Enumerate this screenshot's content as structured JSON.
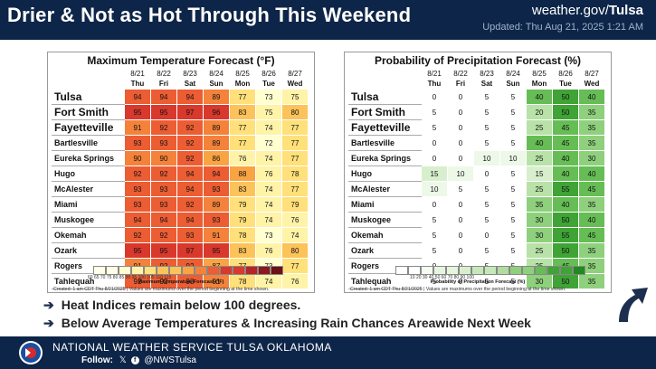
{
  "header": {
    "title": "Drier & Not as Hot Through This Weekend",
    "site_prefix": "weather.gov/",
    "site_office": "Tulsa",
    "updated": "Updated: Thu Aug 21, 2025 1:21 AM"
  },
  "temp_panel": {
    "title": "Maximum Temperature Forecast (°F)",
    "dates": [
      "8/21",
      "8/22",
      "8/23",
      "8/24",
      "8/25",
      "8/26",
      "8/27"
    ],
    "days": [
      "Thu",
      "Fri",
      "Sat",
      "Sun",
      "Mon",
      "Tue",
      "Wed"
    ],
    "rows": [
      {
        "city": "Tulsa",
        "size": "big",
        "values": [
          94,
          94,
          94,
          89,
          77,
          73,
          75
        ]
      },
      {
        "city": "Fort Smith",
        "size": "big",
        "values": [
          95,
          95,
          97,
          96,
          83,
          75,
          80
        ]
      },
      {
        "city": "Fayetteville",
        "size": "big",
        "values": [
          91,
          92,
          92,
          89,
          77,
          74,
          77
        ]
      },
      {
        "city": "Bartlesville",
        "size": "small",
        "values": [
          93,
          93,
          92,
          89,
          77,
          72,
          77
        ]
      },
      {
        "city": "Eureka Springs",
        "size": "small",
        "values": [
          90,
          90,
          92,
          86,
          76,
          74,
          77
        ]
      },
      {
        "city": "Hugo",
        "size": "small",
        "values": [
          92,
          92,
          94,
          94,
          88,
          76,
          78
        ]
      },
      {
        "city": "McAlester",
        "size": "small",
        "values": [
          93,
          93,
          94,
          93,
          83,
          74,
          77
        ]
      },
      {
        "city": "Miami",
        "size": "small",
        "values": [
          93,
          93,
          92,
          89,
          79,
          74,
          79
        ]
      },
      {
        "city": "Muskogee",
        "size": "small",
        "values": [
          94,
          94,
          94,
          93,
          79,
          74,
          76
        ]
      },
      {
        "city": "Okemah",
        "size": "small",
        "values": [
          92,
          92,
          93,
          91,
          78,
          73,
          74
        ]
      },
      {
        "city": "Ozark",
        "size": "small",
        "values": [
          95,
          95,
          97,
          95,
          83,
          76,
          80
        ]
      },
      {
        "city": "Rogers",
        "size": "small",
        "values": [
          91,
          92,
          92,
          87,
          77,
          73,
          77
        ]
      },
      {
        "city": "Tahlequah",
        "size": "small",
        "values": [
          92,
          92,
          93,
          91,
          78,
          74,
          76
        ]
      }
    ],
    "legend_ticks": "60   65   70   75   80   85   90   95  100  105  110  115",
    "legend_label": "Maximum Temperature Forecast (°F)",
    "created": "Created: 1 am CDT Thu 8/21/2025  |  Values are maximums over the period beginning at the time shown."
  },
  "precip_panel": {
    "title": "Probability of Precipitation Forecast (%)",
    "dates": [
      "8/21",
      "8/22",
      "8/23",
      "8/24",
      "8/25",
      "8/26",
      "8/27"
    ],
    "days": [
      "Thu",
      "Fri",
      "Sat",
      "Sun",
      "Mon",
      "Tue",
      "Wed"
    ],
    "rows": [
      {
        "city": "Tulsa",
        "size": "big",
        "values": [
          0,
          0,
          5,
          5,
          40,
          50,
          40
        ]
      },
      {
        "city": "Fort Smith",
        "size": "big",
        "values": [
          5,
          0,
          5,
          5,
          20,
          50,
          35
        ]
      },
      {
        "city": "Fayetteville",
        "size": "big",
        "values": [
          5,
          0,
          5,
          5,
          25,
          45,
          35
        ]
      },
      {
        "city": "Bartlesville",
        "size": "small",
        "values": [
          0,
          0,
          5,
          5,
          40,
          45,
          35
        ]
      },
      {
        "city": "Eureka Springs",
        "size": "small",
        "values": [
          0,
          0,
          10,
          10,
          25,
          40,
          30
        ]
      },
      {
        "city": "Hugo",
        "size": "small",
        "values": [
          15,
          10,
          0,
          5,
          15,
          40,
          40
        ]
      },
      {
        "city": "McAlester",
        "size": "small",
        "values": [
          10,
          5,
          5,
          5,
          25,
          55,
          45
        ]
      },
      {
        "city": "Miami",
        "size": "small",
        "values": [
          0,
          0,
          5,
          5,
          35,
          40,
          35
        ]
      },
      {
        "city": "Muskogee",
        "size": "small",
        "values": [
          5,
          0,
          5,
          5,
          30,
          50,
          40
        ]
      },
      {
        "city": "Okemah",
        "size": "small",
        "values": [
          5,
          0,
          0,
          5,
          30,
          55,
          45
        ]
      },
      {
        "city": "Ozark",
        "size": "small",
        "values": [
          5,
          0,
          5,
          5,
          25,
          50,
          35
        ]
      },
      {
        "city": "Rogers",
        "size": "small",
        "values": [
          0,
          0,
          5,
          5,
          25,
          45,
          35
        ]
      },
      {
        "city": "Tahlequah",
        "size": "small",
        "values": [
          5,
          0,
          5,
          5,
          30,
          50,
          35
        ]
      }
    ],
    "legend_ticks": "10    20    30    40    50    60    70    80    90   100",
    "legend_label": "Probability of Precipitation Forecast (%)",
    "created": "Created: 1 am CDT Thu 8/21/2025  |  Values are maximums over the period beginning at the time shown."
  },
  "bullets": [
    "Heat Indices remain below 100 degrees.",
    "Below Average Temperatures & Increasing Rain Chances Areawide Next Week"
  ],
  "footer": {
    "office": "NATIONAL WEATHER SERVICE TULSA OKLAHOMA",
    "follow_label": "Follow:",
    "handle": "@NWSTulsa"
  },
  "colors": {
    "header_bg": "#0d2548",
    "temp_scale": [
      "#ffffd0",
      "#fff3a8",
      "#ffe07a",
      "#fcc35a",
      "#f9a443",
      "#f4823a",
      "#ec5d33",
      "#d9382c"
    ],
    "precip_scale": [
      "#ffffff",
      "#eef8e8",
      "#d8efcd",
      "#b8e2a8",
      "#8fd07d",
      "#66bd55",
      "#3fa336"
    ]
  }
}
